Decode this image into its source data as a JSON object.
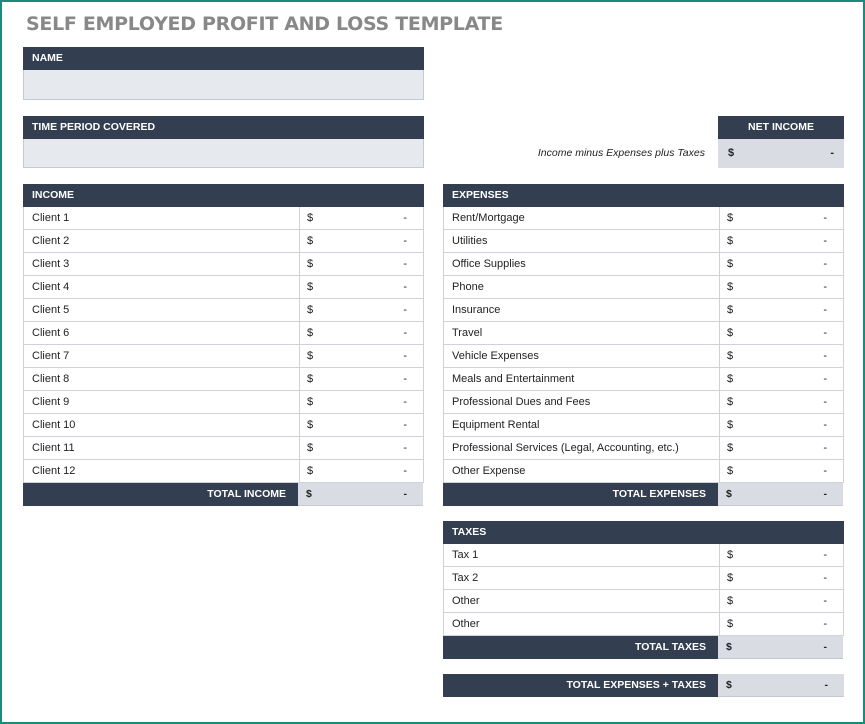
{
  "title": "SELF EMPLOYED PROFIT AND LOSS TEMPLATE",
  "name_label": "NAME",
  "period_label": "TIME PERIOD COVERED",
  "net_income": {
    "label": "NET INCOME",
    "note": "Income minus Expenses plus Taxes",
    "currency": "$",
    "value": "-"
  },
  "currency": "$",
  "dash": "-",
  "income": {
    "header": "INCOME",
    "rows": [
      "Client 1",
      "Client 2",
      "Client 3",
      "Client 4",
      "Client 5",
      "Client 6",
      "Client 7",
      "Client 8",
      "Client 9",
      "Client 10",
      "Client 11",
      "Client 12"
    ],
    "total_label": "TOTAL INCOME",
    "total_value": "-"
  },
  "expenses": {
    "header": "EXPENSES",
    "rows": [
      "Rent/Mortgage",
      "Utilities",
      "Office Supplies",
      "Phone",
      "Insurance",
      "Travel",
      "Vehicle Expenses",
      "Meals and Entertainment",
      "Professional Dues and Fees",
      "Equipment Rental",
      "Professional Services (Legal, Accounting, etc.)",
      "Other Expense"
    ],
    "total_label": "TOTAL EXPENSES",
    "total_value": "-"
  },
  "taxes": {
    "header": "TAXES",
    "rows": [
      "Tax 1",
      "Tax 2",
      "Other",
      "Other"
    ],
    "total_label": "TOTAL TAXES",
    "total_value": "-"
  },
  "grand_total": {
    "label": "TOTAL EXPENSES + TAXES",
    "value": "-"
  }
}
